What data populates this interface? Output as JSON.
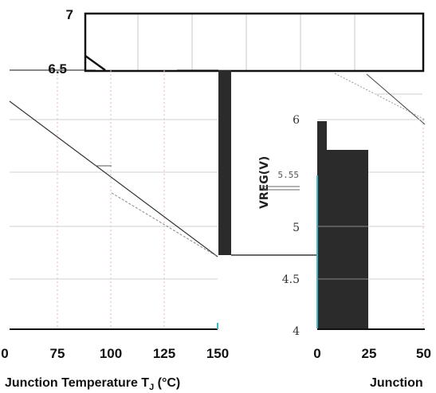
{
  "chart_data": [
    {
      "type": "line",
      "panel": "back",
      "xlabel": "Junction Temperature",
      "xunit_sub": "J",
      "xunit_tail": "(°C)",
      "x_ticks": [
        "75",
        "100",
        "125",
        "150"
      ],
      "x_tick_values": [
        75,
        100,
        125,
        150
      ],
      "y_ticks": [
        "7",
        "6.5"
      ],
      "y_tick_values": [
        7,
        6.5
      ],
      "xlim": [
        50,
        150
      ],
      "ylim": [
        4,
        7
      ],
      "grid": true,
      "series": [
        {
          "x": [
            50,
            150
          ],
          "values": [
            6.1,
            4.76
          ]
        }
      ]
    },
    {
      "type": "line",
      "panel": "front",
      "xlabel": "Junction",
      "ylabel": "VREG(V)",
      "ylabel_partial": "Vreg (V)",
      "x_ticks": [
        "0",
        "25",
        "50"
      ],
      "x_tick_values": [
        0,
        25,
        50
      ],
      "y_ticks": [
        "6",
        "5.55",
        "5",
        "4.5",
        "4"
      ],
      "y_tick_values": [
        6,
        5.55,
        5,
        4.5,
        4
      ],
      "xlim": [
        0,
        50
      ],
      "ylim": [
        4,
        6.5
      ],
      "grid": true,
      "series": [
        {
          "x": [
            25,
            50
          ],
          "values": [
            6.5,
            6.0
          ]
        }
      ]
    }
  ],
  "labels": {
    "back_prefix": "Junction Temperature T",
    "back_sub": "J",
    "back_suffix": " (°C)",
    "front_cut": "Junction",
    "cut_left_tick": "0"
  },
  "colors": {
    "axis": "#111111",
    "grid": "#cccccc",
    "series": "#333333",
    "bar": "#2b2b2b",
    "accent": "#3fb8c8"
  }
}
